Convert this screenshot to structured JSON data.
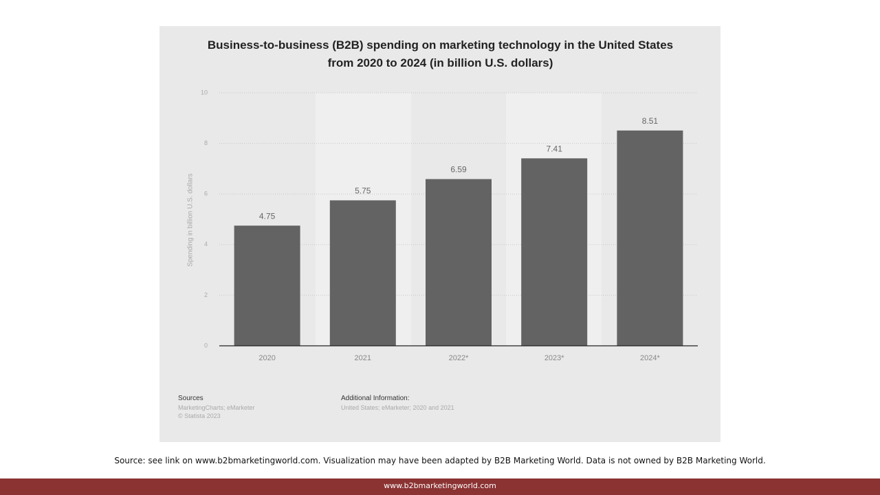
{
  "chart_data": {
    "type": "bar",
    "title": "Business-to-business (B2B) spending on marketing technology in the United States from 2020 to 2024 (in billion U.S. dollars)",
    "y_label": "Spending in billion U.S. dollars",
    "categories": [
      "2020",
      "2021",
      "2022*",
      "2023*",
      "2024*"
    ],
    "values": [
      4.75,
      5.75,
      6.59,
      7.41,
      8.51
    ],
    "color": "#636363",
    "ylim": [
      0,
      10
    ],
    "yticks": [
      0,
      2,
      4,
      6,
      8,
      10
    ],
    "grid": true
  },
  "sources": {
    "heading": "Sources",
    "lines": [
      "MarketingCharts; eMarketer",
      "© Statista 2023"
    ]
  },
  "additional_information": {
    "heading": "Additional Information:",
    "text": "United States; eMarketer; 2020 and 2021"
  },
  "footer": {
    "credit": "Source: see link on www.b2bmarketingworld.com. Visualization may have been adapted by B2B Marketing World. Data is not owned by B2B Marketing World.",
    "site": "www.b2bmarketingworld.com"
  }
}
